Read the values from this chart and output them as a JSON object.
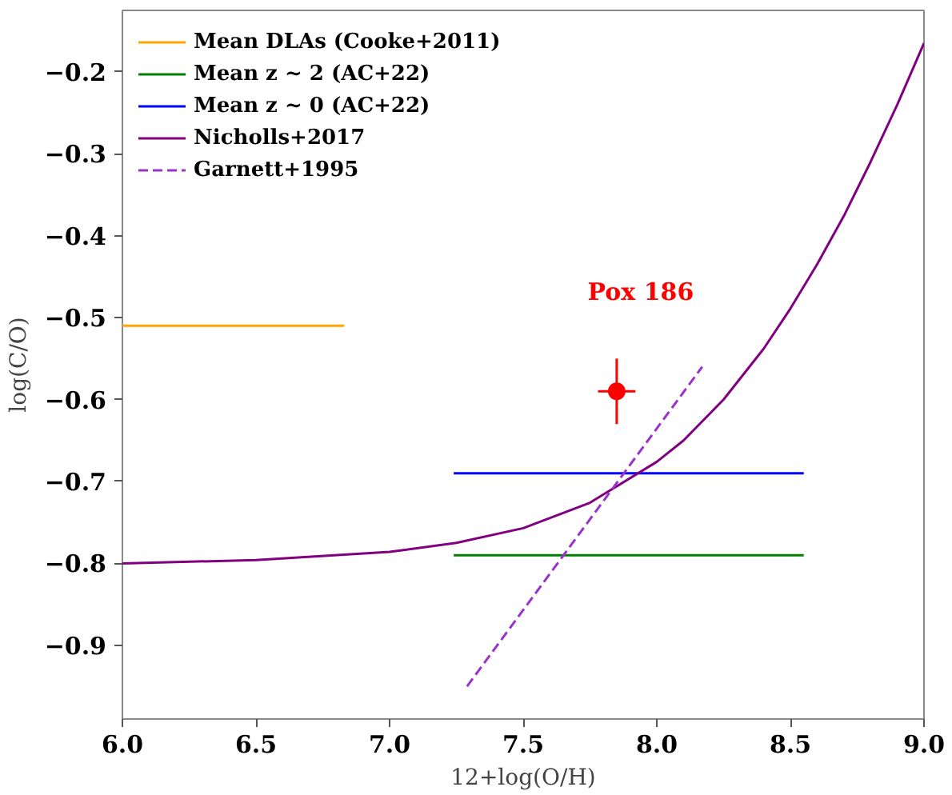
{
  "chart_data": {
    "type": "line",
    "xlabel": "12+log(O/H)",
    "ylabel": "log(C/O)",
    "xlim": [
      6.0,
      9.0
    ],
    "ylim": [
      -0.99,
      -0.125
    ],
    "xticks": [
      {
        "value": 6.0,
        "label": "6.0"
      },
      {
        "value": 6.5,
        "label": "6.5"
      },
      {
        "value": 7.0,
        "label": "7.0"
      },
      {
        "value": 7.5,
        "label": "7.5"
      },
      {
        "value": 8.0,
        "label": "8.0"
      },
      {
        "value": 8.5,
        "label": "8.5"
      },
      {
        "value": 9.0,
        "label": "9.0"
      }
    ],
    "yticks": [
      -0.9,
      -0.8,
      -0.7,
      -0.6,
      -0.5,
      -0.4,
      -0.3,
      -0.2
    ],
    "grid": false,
    "legend": "top left",
    "series": [
      {
        "name": "Mean DLAs (Cooke+2011)",
        "color": "#ffa500",
        "line_style": "solid",
        "x": [
          6.0,
          6.83
        ],
        "values": [
          -0.51,
          -0.51
        ]
      },
      {
        "name": "Mean z ~ 2 (AC+22)",
        "color": "#008000",
        "line_style": "solid",
        "x": [
          7.24,
          8.55
        ],
        "values": [
          -0.79,
          -0.79
        ]
      },
      {
        "name": "Mean z ~ 0 (AC+22)",
        "color": "#0000ff",
        "line_style": "solid",
        "x": [
          7.24,
          8.55
        ],
        "values": [
          -0.69,
          -0.69
        ]
      },
      {
        "name": "Nicholls+2017",
        "color": "#800080",
        "line_style": "solid",
        "x": [
          6.0,
          6.5,
          7.0,
          7.25,
          7.5,
          7.75,
          8.0,
          8.1,
          8.25,
          8.4,
          8.5,
          8.6,
          8.7,
          8.8,
          8.9,
          9.0
        ],
        "values": [
          -0.8,
          -0.796,
          -0.786,
          -0.775,
          -0.757,
          -0.726,
          -0.676,
          -0.65,
          -0.6,
          -0.538,
          -0.489,
          -0.435,
          -0.376,
          -0.31,
          -0.24,
          -0.165
        ]
      },
      {
        "name": "Garnett+1995",
        "color": "#9932cc",
        "line_style": "dashed",
        "x": [
          7.29,
          8.17
        ],
        "values": [
          -0.95,
          -0.56
        ]
      },
      {
        "type": "scatter",
        "color": "#ff0000",
        "marker": "circle",
        "x": [
          7.85
        ],
        "values": [
          -0.59
        ],
        "errors": [
          0.04
        ],
        "xerrors": [
          0.07
        ]
      }
    ],
    "annotations": [
      "Pox 186"
    ]
  }
}
